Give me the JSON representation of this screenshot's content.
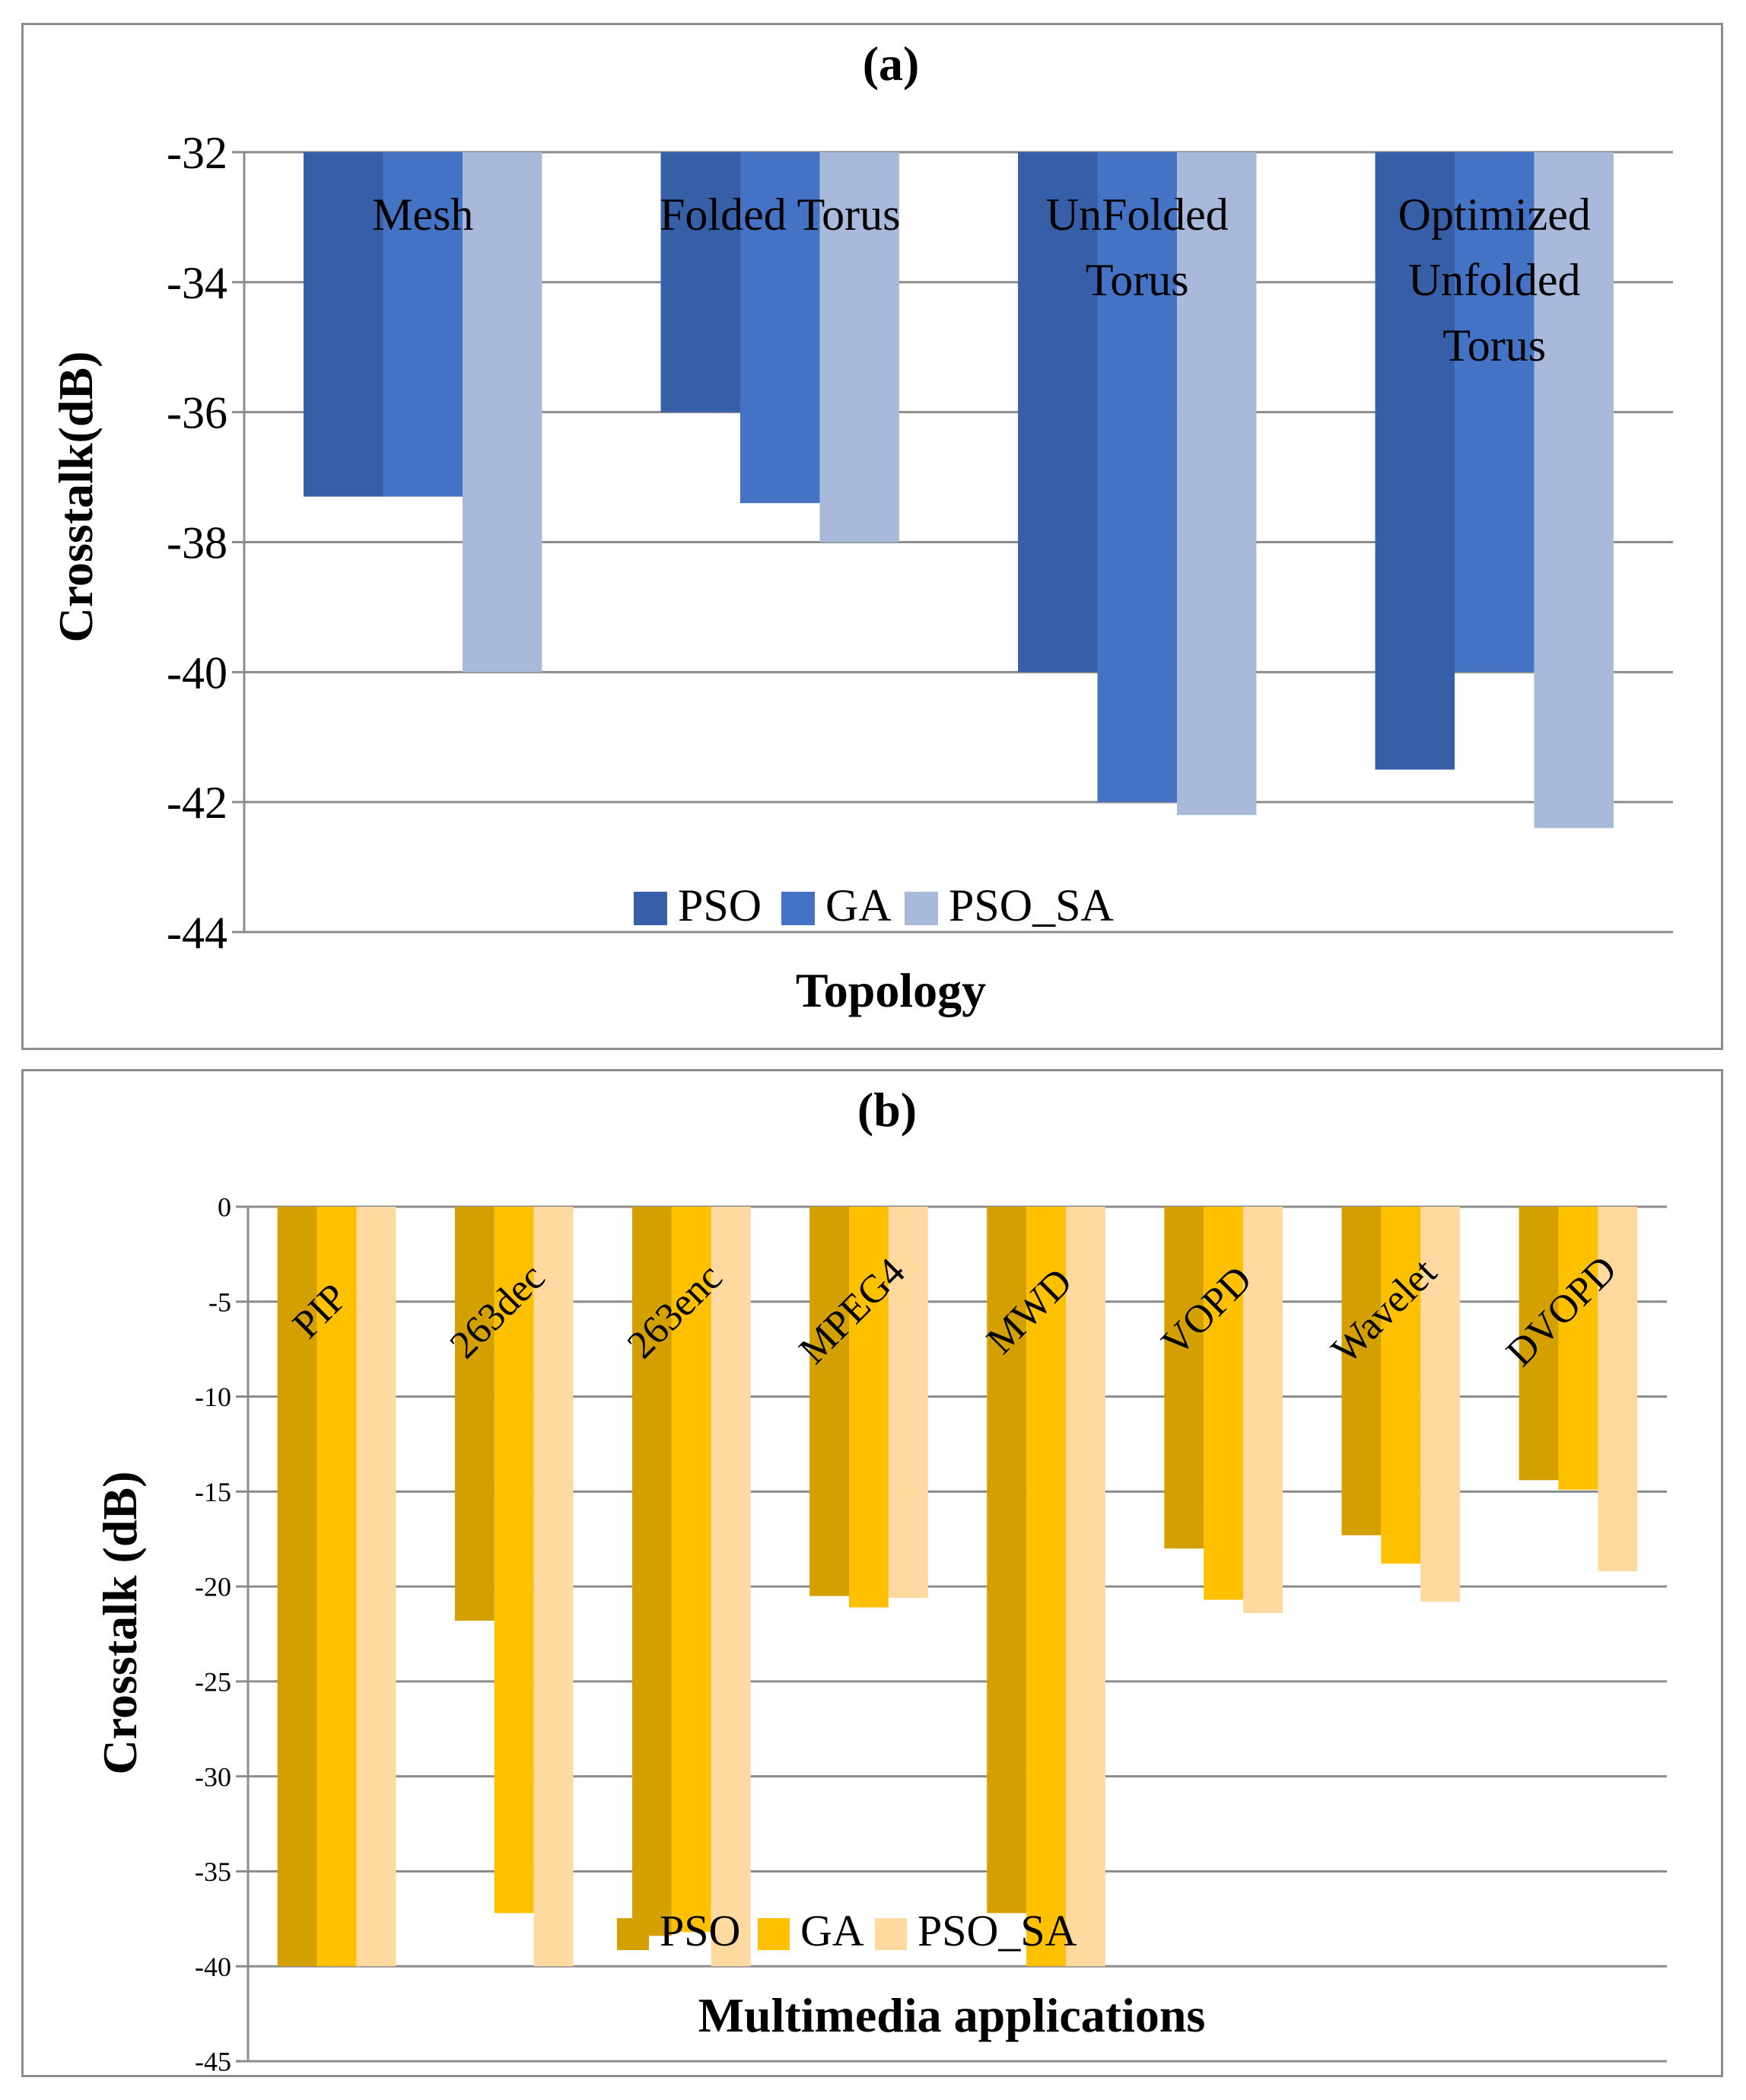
{
  "chart_data": [
    {
      "type": "bar",
      "title": "(a)",
      "xlabel": "Topology",
      "ylabel": "Crosstalk(dB)",
      "ylim": [
        -44,
        -32
      ],
      "ytick_step": 2,
      "yticks": [
        "-32",
        "-34",
        "-36",
        "-38",
        "-40",
        "-42",
        "-44"
      ],
      "categories": [
        [
          "Mesh"
        ],
        [
          "Folded Torus"
        ],
        [
          "UnFolded",
          "Torus"
        ],
        [
          "Optimized",
          "Unfolded",
          "Torus"
        ]
      ],
      "series": [
        {
          "name": "PSO",
          "color": "#365fa8",
          "values": [
            -37.3,
            -36.0,
            -40.0,
            -41.5
          ]
        },
        {
          "name": "GA",
          "color": "#4472c4",
          "values": [
            -37.3,
            -37.4,
            -42.0,
            -40.0
          ]
        },
        {
          "name": "PSO_SA",
          "color": "#a9b9dc",
          "values": [
            -40.0,
            -38.0,
            -42.2,
            -42.4
          ]
        }
      ],
      "legend_position": "bottom",
      "grid": true
    },
    {
      "type": "bar",
      "title": "(b)",
      "xlabel": "Multimedia applications",
      "ylabel": "Crosstalk (dB)",
      "ylim": [
        -45,
        0
      ],
      "ytick_step": 5,
      "yticks": [
        "0",
        "-5",
        "-10",
        "-15",
        "-20",
        "-25",
        "-30",
        "-35",
        "-40",
        "-45"
      ],
      "categories": [
        "PIP",
        "263dec",
        "263enc",
        "MPEG4",
        "MWD",
        "VOPD",
        "Wavelet",
        "DVOPD"
      ],
      "series": [
        {
          "name": "PSO",
          "color": "#d4a000",
          "values": [
            -40,
            -21.8,
            -38.4,
            -20.5,
            -37.2,
            -18.0,
            -17.3,
            -14.4
          ]
        },
        {
          "name": "GA",
          "color": "#ffc000",
          "values": [
            -40,
            -37.2,
            -38.2,
            -21.1,
            -40.0,
            -20.7,
            -18.8,
            -14.9
          ]
        },
        {
          "name": "PSO_SA",
          "color": "#ffd9a0",
          "values": [
            -40,
            -40.0,
            -40.0,
            -20.6,
            -40.0,
            -21.4,
            -20.8,
            -19.2
          ]
        }
      ],
      "legend_position": "bottom",
      "grid": true
    }
  ]
}
